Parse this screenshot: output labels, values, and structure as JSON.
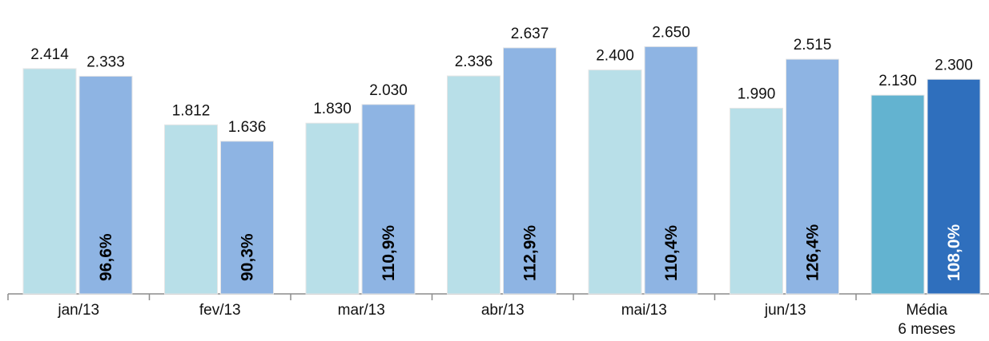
{
  "chart_data": {
    "type": "bar",
    "categories": [
      "jan/13",
      "fev/13",
      "mar/13",
      "abr/13",
      "mai/13",
      "jun/13",
      "Média\n6 meses"
    ],
    "series": [
      {
        "values": [
          2414,
          1812,
          1830,
          2336,
          2400,
          1990,
          2130
        ],
        "labels": [
          "2.414",
          "1.812",
          "1.830",
          "2.336",
          "2.400",
          "1.990",
          "2.130"
        ]
      },
      {
        "values": [
          2333,
          1636,
          2030,
          2637,
          2650,
          2515,
          2300
        ],
        "labels": [
          "2.333",
          "1.636",
          "2.030",
          "2.637",
          "2.650",
          "2.515",
          "2.300"
        ]
      }
    ],
    "ratio_labels": [
      "96,6%",
      "90,3%",
      "110,9%",
      "112,9%",
      "110,4%",
      "126,4%",
      "108,0%"
    ],
    "ylim": [
      0,
      2850
    ],
    "grid": false,
    "colors": {
      "series1": "#b8dfe8",
      "series2": "#8eb4e3",
      "series1_highlight": "#63b3d0",
      "series2_highlight": "#2f6fbd",
      "axis": "#8c8c8c",
      "ratio_text": "#000000",
      "ratio_text_highlight": "#ffffff"
    }
  }
}
